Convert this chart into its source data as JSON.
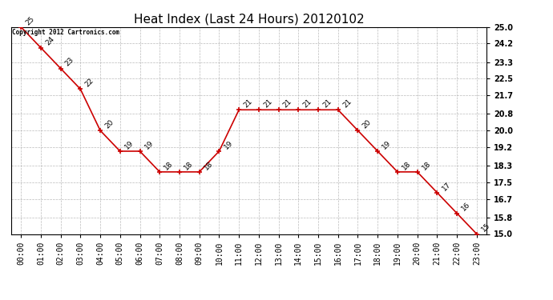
{
  "title": "Heat Index (Last 24 Hours) 20120102",
  "copyright_text": "Copyright 2012 Cartronics.com",
  "x_labels": [
    "00:00",
    "01:00",
    "02:00",
    "03:00",
    "04:00",
    "05:00",
    "06:00",
    "07:00",
    "08:00",
    "09:00",
    "10:00",
    "11:00",
    "12:00",
    "13:00",
    "14:00",
    "15:00",
    "16:00",
    "17:00",
    "18:00",
    "19:00",
    "20:00",
    "21:00",
    "22:00",
    "23:00"
  ],
  "y_values": [
    25,
    24,
    23,
    22,
    20,
    19,
    19,
    18,
    18,
    18,
    19,
    21,
    21,
    21,
    21,
    21,
    21,
    20,
    19,
    18,
    18,
    17,
    16,
    15
  ],
  "y_min": 15.0,
  "y_max": 25.0,
  "y_ticks": [
    15.0,
    15.8,
    16.7,
    17.5,
    18.3,
    19.2,
    20.0,
    20.8,
    21.7,
    22.5,
    23.3,
    24.2,
    25.0
  ],
  "line_color": "#cc0000",
  "marker_color": "#cc0000",
  "bg_color": "#ffffff",
  "grid_color": "#aaaaaa",
  "title_fontsize": 11,
  "label_fontsize": 7,
  "annotation_fontsize": 6.5
}
